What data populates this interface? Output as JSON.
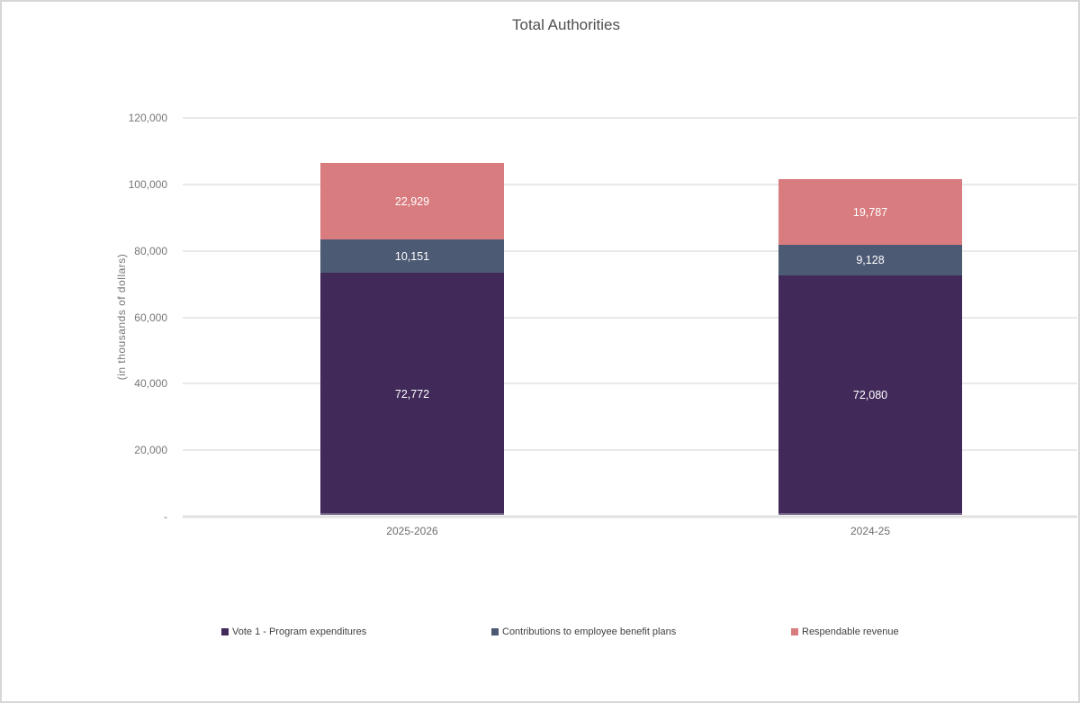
{
  "chart_data": {
    "type": "bar",
    "stacked": true,
    "title": "Total Authorities",
    "ylabel": "(in thousands of dollars)",
    "categories": [
      "2025-2026",
      "2024-25"
    ],
    "series": [
      {
        "name": "Vote 1 - Program expenditures",
        "color": "#412a59",
        "values": [
          72772,
          72080
        ],
        "labels": [
          "72,772",
          "72,080"
        ]
      },
      {
        "name": "Contributions to employee benefit plans",
        "color": "#4d5a74",
        "values": [
          10151,
          9128
        ],
        "labels": [
          "10,151",
          "9,128"
        ]
      },
      {
        "name": "Respendable revenue",
        "color": "#d97c80",
        "values": [
          22929,
          19787
        ],
        "labels": [
          "22,929",
          "19,787"
        ]
      }
    ],
    "ylim": [
      0,
      120000
    ],
    "yticks": [
      {
        "value": 120000,
        "label": "120,000"
      },
      {
        "value": 100000,
        "label": "100,000"
      },
      {
        "value": 80000,
        "label": "80,000"
      },
      {
        "value": 60000,
        "label": "60,000"
      },
      {
        "value": 40000,
        "label": "40,000"
      },
      {
        "value": 20000,
        "label": "20,000"
      },
      {
        "value": 0,
        "label": "-"
      }
    ],
    "grid": "horizontal",
    "legend_position": "bottom"
  }
}
